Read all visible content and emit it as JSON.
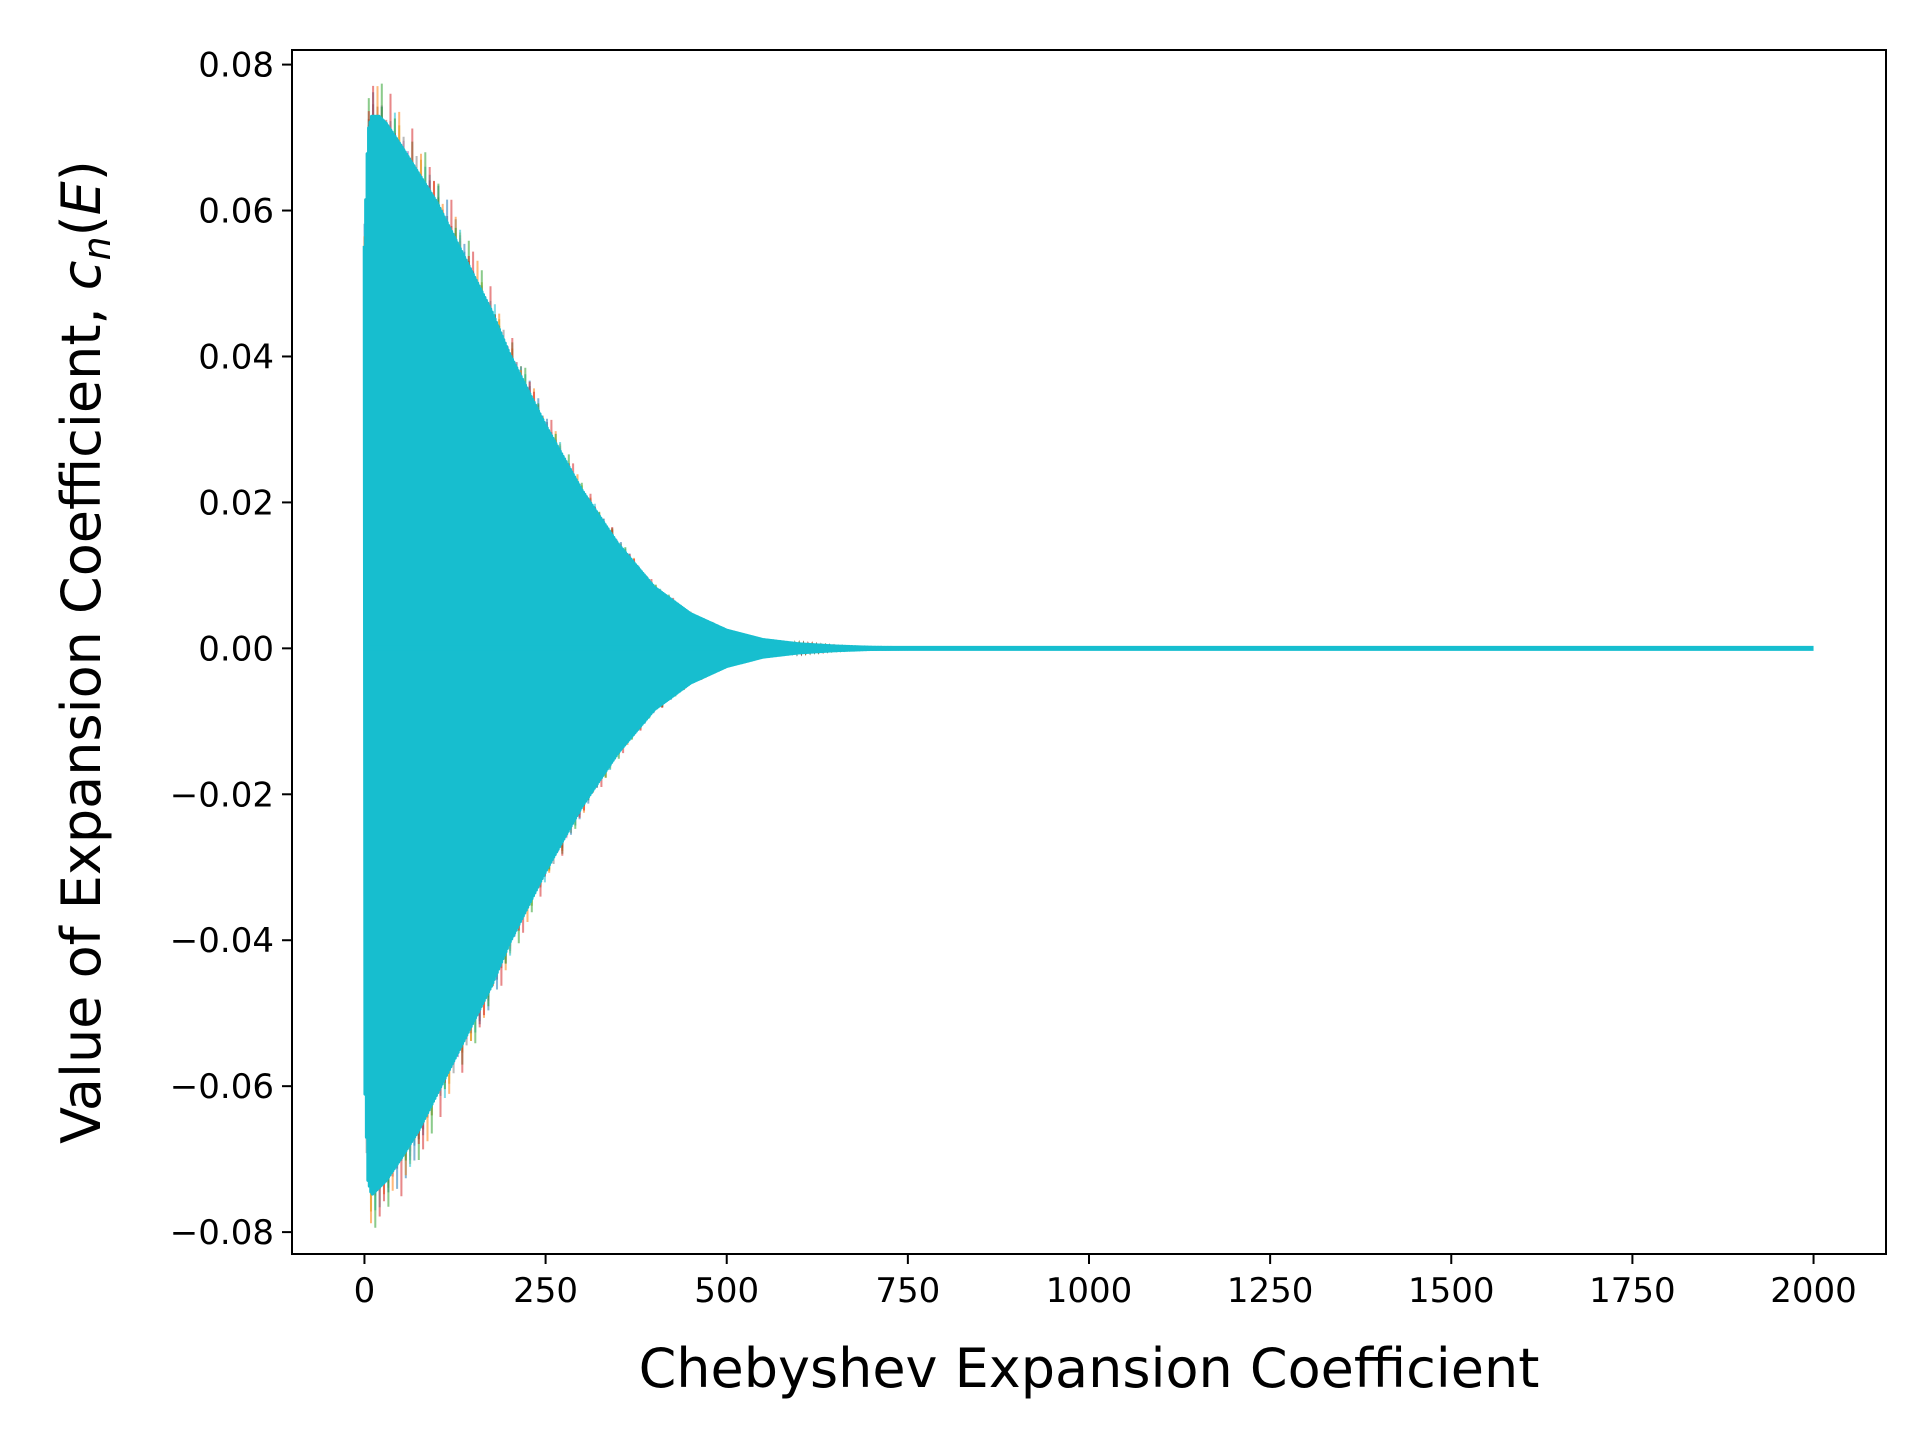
{
  "chart_data": {
    "type": "line",
    "title": "",
    "xlabel": "Chebyshev Expansion Coefficient",
    "ylabel": {
      "prefix": "Value of Expansion Coefficient, ",
      "symbol": "c",
      "subscript": "n",
      "open": "(",
      "arg": "E",
      "close": ")"
    },
    "xlim": [
      -100,
      2100
    ],
    "ylim": [
      -0.083,
      0.082
    ],
    "x_ticks": [
      0,
      250,
      500,
      750,
      1000,
      1250,
      1500,
      1750,
      2000
    ],
    "x_tick_labels": [
      "0",
      "250",
      "500",
      "750",
      "1000",
      "1250",
      "1500",
      "1750",
      "2000"
    ],
    "y_ticks": [
      -0.08,
      -0.06,
      -0.04,
      -0.02,
      0.0,
      0.02,
      0.04,
      0.06,
      0.08
    ],
    "y_tick_labels": [
      "−0.08",
      "−0.06",
      "−0.04",
      "−0.02",
      "0.00",
      "0.02",
      "0.04",
      "0.06",
      "0.08"
    ],
    "grid": false,
    "legend": "none",
    "description_of_series": "many overlapping oscillating series; coefficients spanning n = 0..2000 decaying toward zero",
    "n_range": [
      0,
      2000
    ],
    "envelope": {
      "x": [
        0,
        5,
        10,
        20,
        30,
        50,
        75,
        100,
        125,
        150,
        175,
        200,
        250,
        300,
        350,
        400,
        450,
        500,
        550,
        600,
        650,
        700,
        750,
        800,
        2000
      ],
      "upper": [
        0.056,
        0.072,
        0.074,
        0.074,
        0.073,
        0.07,
        0.066,
        0.062,
        0.057,
        0.052,
        0.047,
        0.041,
        0.031,
        0.022,
        0.0145,
        0.0085,
        0.0048,
        0.0025,
        0.0012,
        0.0006,
        0.0003,
        0.00012,
        5e-05,
        0.0,
        0.0
      ],
      "lower": [
        -0.059,
        -0.074,
        -0.076,
        -0.075,
        -0.074,
        -0.071,
        -0.067,
        -0.062,
        -0.057,
        -0.052,
        -0.047,
        -0.041,
        -0.031,
        -0.022,
        -0.0145,
        -0.0085,
        -0.0048,
        -0.0025,
        -0.0012,
        -0.0006,
        -0.0003,
        -0.00012,
        -5e-05,
        0.0,
        0.0
      ]
    },
    "colors": {
      "dominant": "#17becf",
      "palette": [
        "#1f77b4",
        "#ff7f0e",
        "#2ca02c",
        "#d62728",
        "#9467bd",
        "#8c564b",
        "#e377c2",
        "#7f7f7f",
        "#bcbd22",
        "#17becf"
      ],
      "axis": "#000000"
    }
  }
}
